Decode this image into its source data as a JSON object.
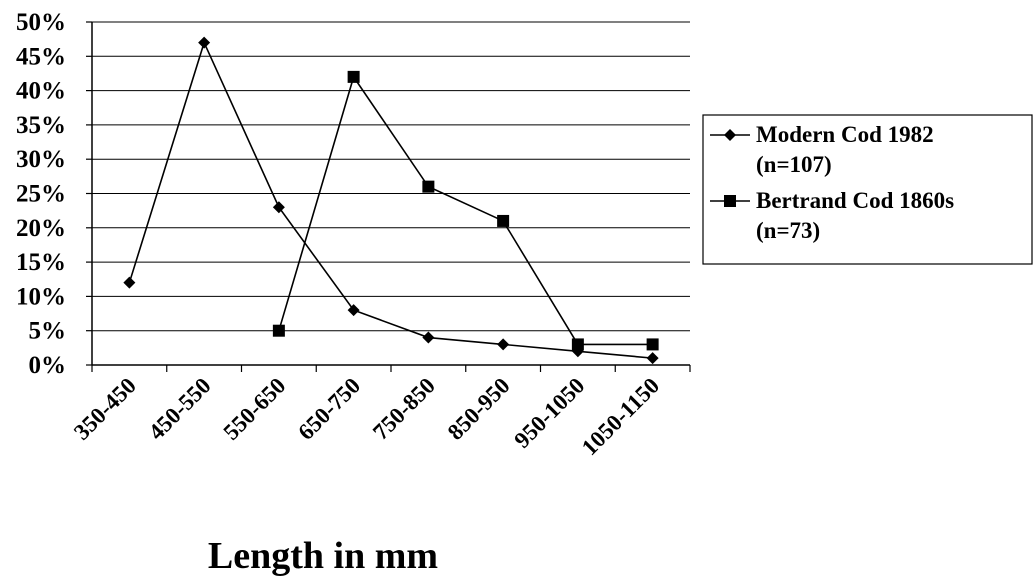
{
  "chart_data": {
    "type": "line",
    "title": "",
    "xlabel": "Length in mm",
    "ylabel": "",
    "categories": [
      "350-450",
      "450-550",
      "550-650",
      "650-750",
      "750-850",
      "850-950",
      "950-1050",
      "1050-1150"
    ],
    "ylim": [
      0,
      50
    ],
    "yticks": [
      0,
      5,
      10,
      15,
      20,
      25,
      30,
      35,
      40,
      45,
      50
    ],
    "ytick_labels": [
      "0%",
      "5%",
      "10%",
      "15%",
      "20%",
      "25%",
      "30%",
      "35%",
      "40%",
      "45%",
      "50%"
    ],
    "grid": true,
    "legend_position": "right",
    "series": [
      {
        "name": "Modern Cod 1982 (n=107)",
        "legend_lines": [
          "Modern Cod 1982",
          "(n=107)"
        ],
        "marker": "diamond",
        "color": "#000000",
        "values": [
          12,
          47,
          23,
          8,
          4,
          3,
          2,
          1
        ]
      },
      {
        "name": "Bertrand Cod 1860s (n=73)",
        "legend_lines": [
          "Bertrand Cod 1860s",
          "(n=73)"
        ],
        "marker": "square",
        "color": "#000000",
        "values": [
          null,
          null,
          5,
          42,
          26,
          21,
          3,
          3
        ]
      }
    ]
  }
}
